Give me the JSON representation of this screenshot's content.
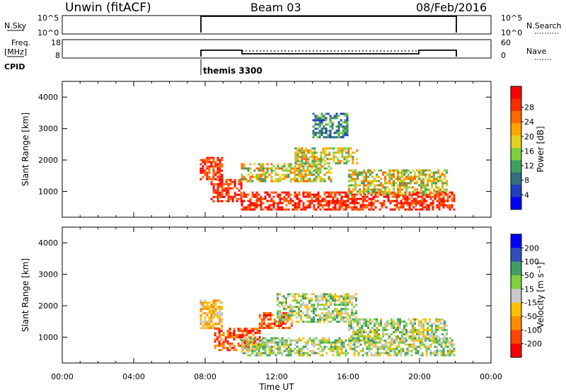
{
  "header": {
    "station": "Unwin (fitACF)",
    "beam": "Beam 03",
    "date": "08/Feb/2016",
    "cpid_label": "CPID",
    "cpid_value": "themis 3300"
  },
  "strips": {
    "nsky": {
      "left_label": "N.Sky",
      "right_label": "N.Search",
      "left_ticks": [
        "10^5",
        "10^0"
      ],
      "right_ticks": [
        "10^5",
        "10^0"
      ]
    },
    "freq": {
      "left_label_1": "Freq.",
      "left_label_2": "[MHz]",
      "right_label": "Nave",
      "left_ticks": [
        18,
        8
      ],
      "right_ticks": [
        60,
        0
      ]
    }
  },
  "colors": {
    "power": [
      "#0000ff",
      "#1f3fbf",
      "#2f6f7f",
      "#3f9f5f",
      "#7fcf3f",
      "#e6d020",
      "#ffa500",
      "#ff6a00",
      "#ff2a00",
      "#ff0000"
    ],
    "velocity": [
      "#ff0000",
      "#ff4500",
      "#ff8c00",
      "#ffc000",
      "#c8c8c8",
      "#7fcf3f",
      "#3f9f5f",
      "#2f4fbf",
      "#0000ff"
    ]
  },
  "chart_data": [
    {
      "type": "heatmap",
      "name_key": "power",
      "ylabel": "Slant Range [km]",
      "xlabel": "Time UT",
      "x_ticks": [
        "00:00",
        "04:00",
        "08:00",
        "12:00",
        "16:00",
        "20:00",
        "00:00"
      ],
      "xlim_hours": [
        0,
        24
      ],
      "ylim_km": [
        180,
        4500
      ],
      "y_ticks": [
        1000,
        2000,
        3000,
        4000
      ],
      "colorbar_label": "Power [dB]",
      "colorbar_ticks": [
        "4",
        "8",
        "12",
        "16",
        "20",
        "24",
        "28"
      ],
      "echo_regions": [
        {
          "t": [
            7.7,
            8.9
          ],
          "r": [
            1400,
            2100
          ],
          "level": "high"
        },
        {
          "t": [
            8.3,
            10.0
          ],
          "r": [
            700,
            1400
          ],
          "level": "high"
        },
        {
          "t": [
            10.0,
            22.0
          ],
          "r": [
            450,
            1000
          ],
          "level": "high"
        },
        {
          "t": [
            10.0,
            15.0
          ],
          "r": [
            1300,
            1900
          ],
          "level": "mid"
        },
        {
          "t": [
            13.0,
            16.5
          ],
          "r": [
            1900,
            2400
          ],
          "level": "mid"
        },
        {
          "t": [
            16.0,
            21.5
          ],
          "r": [
            900,
            1700
          ],
          "level": "mid"
        },
        {
          "t": [
            14.0,
            16.0
          ],
          "r": [
            2700,
            3500
          ],
          "level": "low"
        }
      ]
    },
    {
      "type": "heatmap",
      "name_key": "velocity",
      "ylabel": "Slant Range [km]",
      "xlabel": "Time UT",
      "x_ticks": [
        "00:00",
        "04:00",
        "08:00",
        "12:00",
        "16:00",
        "20:00",
        "00:00"
      ],
      "xlim_hours": [
        0,
        24
      ],
      "ylim_km": [
        180,
        4500
      ],
      "y_ticks": [
        1000,
        2000,
        3000,
        4000
      ],
      "colorbar_label": "Velocity [m s⁻¹]",
      "colorbar_ticks": [
        "200",
        "100",
        "50",
        "15",
        "-15",
        "-50",
        "-100",
        "-200"
      ],
      "echo_regions": [
        {
          "t": [
            7.7,
            9.0
          ],
          "r": [
            1300,
            2200
          ],
          "level": "neg-small"
        },
        {
          "t": [
            8.5,
            11.0
          ],
          "r": [
            600,
            1300
          ],
          "level": "neg-large"
        },
        {
          "t": [
            11.0,
            12.8
          ],
          "r": [
            1300,
            1800
          ],
          "level": "neg-large"
        },
        {
          "t": [
            10.0,
            22.0
          ],
          "r": [
            450,
            1000
          ],
          "level": "near-zero"
        },
        {
          "t": [
            12.0,
            16.5
          ],
          "r": [
            1500,
            2400
          ],
          "level": "near-zero"
        },
        {
          "t": [
            16.0,
            21.5
          ],
          "r": [
            900,
            1600
          ],
          "level": "near-zero"
        }
      ]
    }
  ]
}
